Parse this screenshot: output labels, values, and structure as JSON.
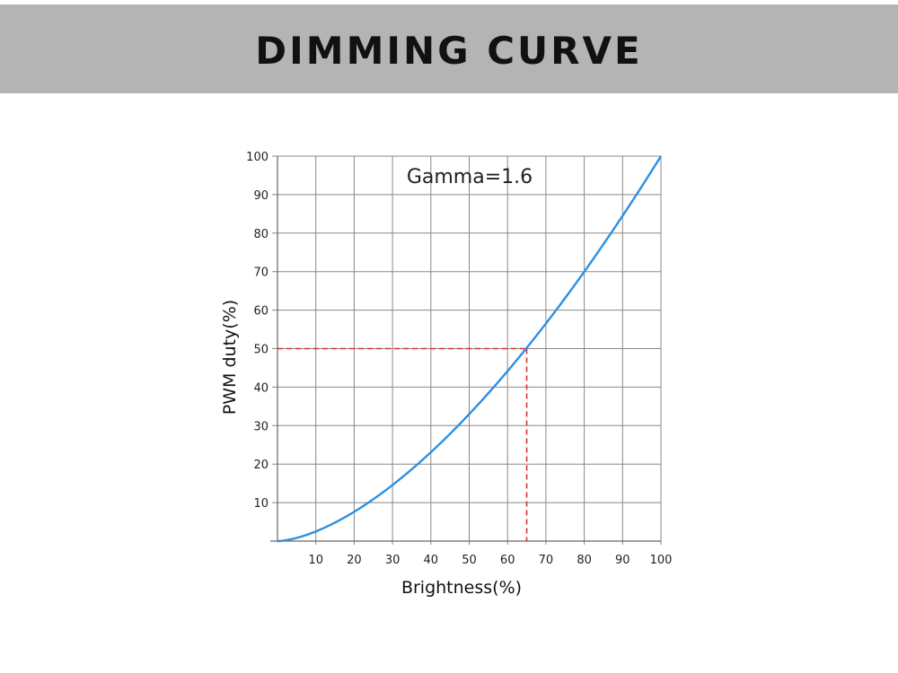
{
  "banner": {
    "title": "DIMMING CURVE"
  },
  "chart_data": {
    "type": "line",
    "xlabel": "Brightness(%)",
    "ylabel": "PWM duty(%)",
    "xlim": [
      0,
      100
    ],
    "ylim": [
      0,
      100
    ],
    "x_ticks": [
      10,
      20,
      30,
      40,
      50,
      60,
      70,
      80,
      90,
      100
    ],
    "y_ticks": [
      10,
      20,
      30,
      40,
      50,
      60,
      70,
      80,
      90,
      100
    ],
    "grid": true,
    "annotation": "Gamma=1.6",
    "gamma": 1.6,
    "series": [
      {
        "color": "#2e8fe0",
        "x": [
          0,
          10,
          20,
          30,
          40,
          50,
          60,
          65,
          70,
          80,
          90,
          100
        ],
        "y": [
          0,
          2.5,
          7.6,
          14.5,
          23.1,
          33.0,
          44.2,
          50.2,
          56.5,
          70.0,
          84.5,
          100
        ]
      }
    ],
    "reference": {
      "x": 65,
      "y": 50,
      "color": "#e03030",
      "style": "dashed"
    },
    "colors": {
      "grid": "#888888",
      "axis": "#666666"
    }
  }
}
